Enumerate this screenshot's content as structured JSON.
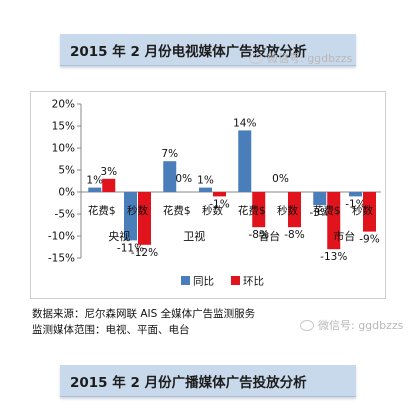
{
  "header_title": "2015 年 2 月份电视媒体广告投放分析",
  "watermark_text": "微信号: ggdbzzs",
  "footer_title": "2015 年 2 月份广播媒体广告投放分析",
  "source_note": "数据来源：尼尔森网联 AIS 全媒体广告监测服务",
  "scope_note": "监测媒体范围：电视、平面、电台",
  "chart_data": {
    "type": "bar",
    "categories": [
      "央视",
      "卫视",
      "省台",
      "市台"
    ],
    "sub_categories": [
      "花费$",
      "秒数"
    ],
    "series": [
      {
        "name": "同比",
        "color": "#4a7ebb",
        "values": [
          [
            1,
            -11
          ],
          [
            7,
            1
          ],
          [
            14,
            0
          ],
          [
            -3,
            -1
          ]
        ],
        "labels": [
          [
            "1%",
            "-11%"
          ],
          [
            "7%",
            "1%"
          ],
          [
            "14%",
            "0%"
          ],
          [
            "-3%",
            "-1%"
          ]
        ]
      },
      {
        "name": "环比",
        "color": "#e1131c",
        "values": [
          [
            3,
            -12
          ],
          [
            0,
            -1
          ],
          [
            -8,
            -8
          ],
          [
            -13,
            -9
          ]
        ],
        "labels": [
          [
            "3%",
            "-12%"
          ],
          [
            "0%",
            "-1%"
          ],
          [
            "-8%",
            "-8%"
          ],
          [
            "-13%",
            "-9%"
          ]
        ]
      }
    ],
    "y_ticks": [
      "20%",
      "15%",
      "10%",
      "5%",
      "0%",
      "-5%",
      "-10%",
      "-15%"
    ],
    "ylim": [
      -15,
      20
    ],
    "legend_position": "bottom-right"
  }
}
